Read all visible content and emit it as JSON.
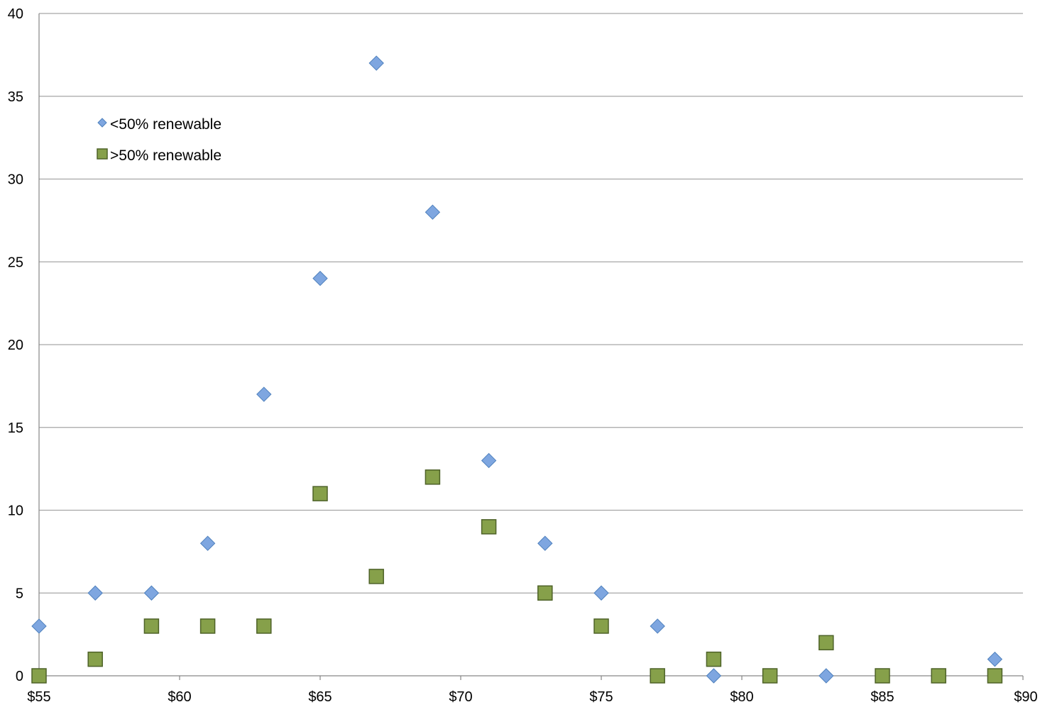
{
  "chart_data": {
    "type": "scatter",
    "title": "",
    "xlabel": "",
    "ylabel": "",
    "xlim": [
      55,
      90
    ],
    "ylim": [
      0,
      40
    ],
    "x_ticks": [
      55,
      60,
      65,
      70,
      75,
      80,
      85,
      90
    ],
    "x_tick_labels": [
      "$55",
      "$60",
      "$65",
      "$70",
      "$75",
      "$80",
      "$85",
      "$90"
    ],
    "y_ticks": [
      0,
      5,
      10,
      15,
      20,
      25,
      30,
      35,
      40
    ],
    "y_tick_labels": [
      "0",
      "5",
      "10",
      "15",
      "20",
      "25",
      "30",
      "35",
      "40"
    ],
    "grid": "horizontal",
    "legend_position": "top-left",
    "series": [
      {
        "name": "<50% renewable",
        "marker": "diamond",
        "color": "#7ea6e0",
        "stroke": "#4f81bd",
        "points": [
          {
            "x": 55,
            "y": 3
          },
          {
            "x": 57,
            "y": 5
          },
          {
            "x": 59,
            "y": 5
          },
          {
            "x": 61,
            "y": 8
          },
          {
            "x": 63,
            "y": 17
          },
          {
            "x": 65,
            "y": 24
          },
          {
            "x": 67,
            "y": 37
          },
          {
            "x": 69,
            "y": 28
          },
          {
            "x": 71,
            "y": 13
          },
          {
            "x": 73,
            "y": 8
          },
          {
            "x": 75,
            "y": 5
          },
          {
            "x": 77,
            "y": 3
          },
          {
            "x": 79,
            "y": 0
          },
          {
            "x": 83,
            "y": 0
          },
          {
            "x": 89,
            "y": 1
          }
        ]
      },
      {
        "name": ">50% renewable",
        "marker": "square",
        "color": "#86a04a",
        "stroke": "#4e6228",
        "points": [
          {
            "x": 55,
            "y": 0
          },
          {
            "x": 57,
            "y": 1
          },
          {
            "x": 59,
            "y": 3
          },
          {
            "x": 61,
            "y": 3
          },
          {
            "x": 63,
            "y": 3
          },
          {
            "x": 65,
            "y": 11
          },
          {
            "x": 67,
            "y": 6
          },
          {
            "x": 69,
            "y": 12
          },
          {
            "x": 71,
            "y": 9
          },
          {
            "x": 73,
            "y": 5
          },
          {
            "x": 75,
            "y": 3
          },
          {
            "x": 77,
            "y": 0
          },
          {
            "x": 79,
            "y": 1
          },
          {
            "x": 81,
            "y": 0
          },
          {
            "x": 83,
            "y": 2
          },
          {
            "x": 85,
            "y": 0
          },
          {
            "x": 87,
            "y": 0
          },
          {
            "x": 89,
            "y": 0
          }
        ]
      }
    ]
  },
  "colors": {
    "gridline": "#a6a6a6",
    "axis": "#868686"
  }
}
